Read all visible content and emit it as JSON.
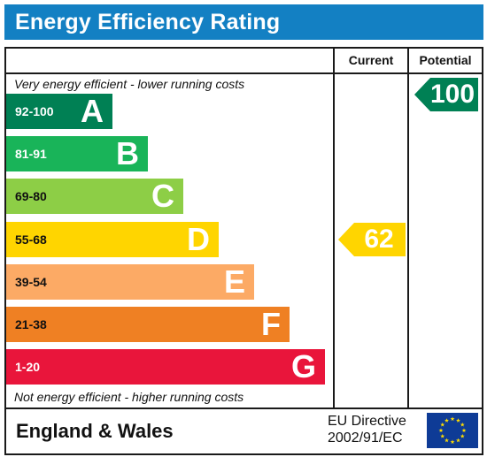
{
  "header": {
    "title": "Energy Efficiency Rating"
  },
  "columns": {
    "current": "Current",
    "potential": "Potential"
  },
  "notes": {
    "top": "Very energy efficient - lower running costs",
    "bottom": "Not energy efficient - higher running costs"
  },
  "chart_data": {
    "type": "bar",
    "categories": [
      "A",
      "B",
      "C",
      "D",
      "E",
      "F",
      "G"
    ],
    "ranges": [
      "92-100",
      "81-91",
      "69-80",
      "55-68",
      "39-54",
      "21-38",
      "1-20"
    ],
    "colors": [
      "#008054",
      "#19b459",
      "#8dce46",
      "#ffd500",
      "#fcaa65",
      "#ef8023",
      "#e9153b"
    ],
    "range_text_colors": [
      "#ffffff",
      "#ffffff",
      "#111111",
      "#111111",
      "#111111",
      "#111111",
      "#ffffff"
    ],
    "current": {
      "value": 62,
      "band": "D",
      "color": "#ffd500"
    },
    "potential": {
      "value": 100,
      "band": "A",
      "color": "#008054"
    }
  },
  "footer": {
    "region": "England & Wales",
    "directive_line1": "EU Directive",
    "directive_line2": "2002/91/EC"
  }
}
